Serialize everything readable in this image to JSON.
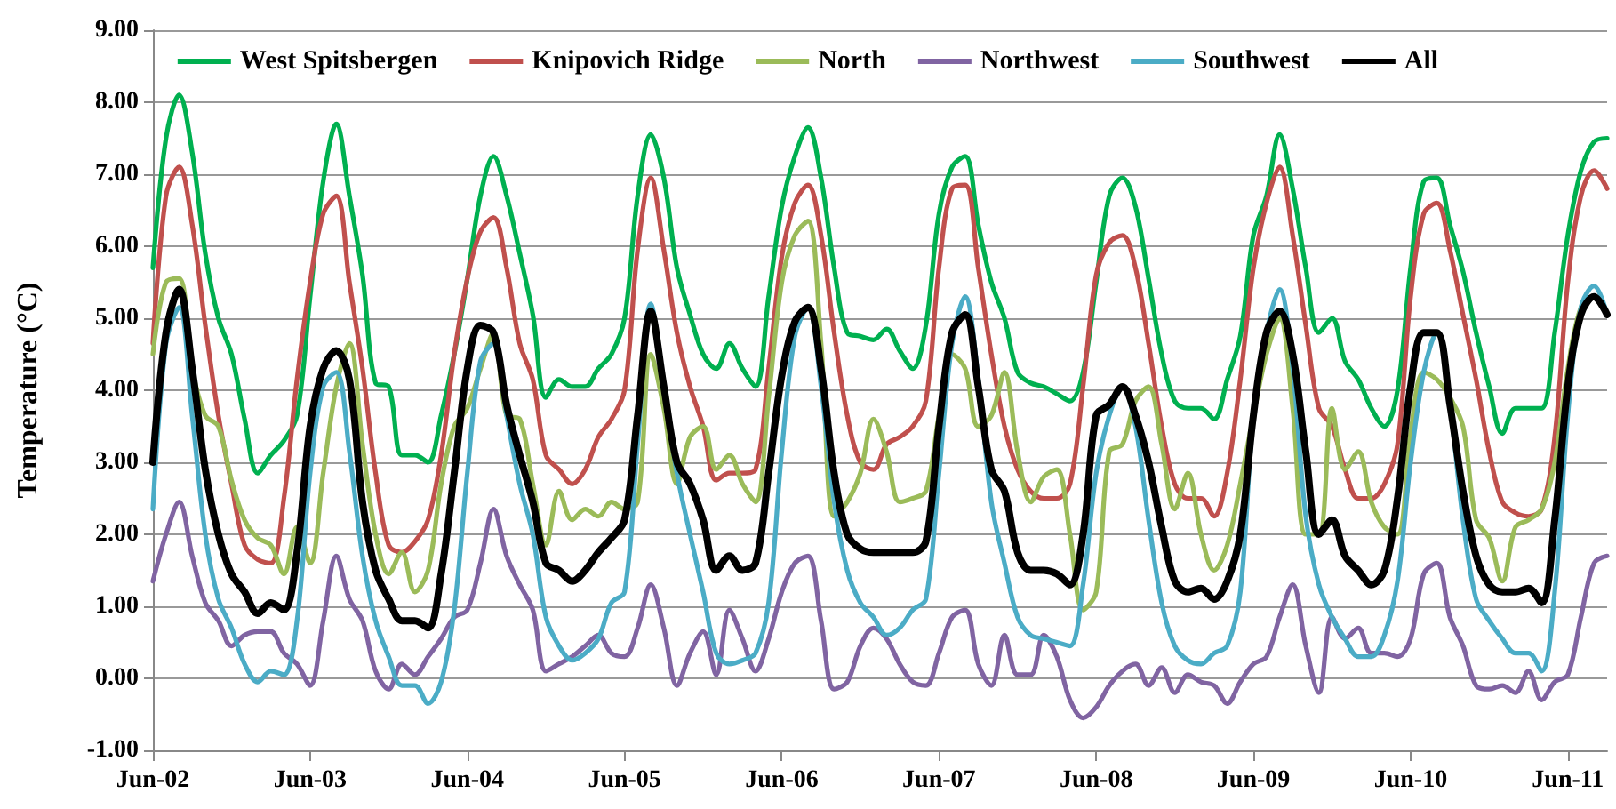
{
  "chart_data": {
    "type": "line",
    "ylabel": "Temperature (°C)",
    "categories": [
      "Jun-02",
      null,
      null,
      null,
      null,
      null,
      null,
      null,
      null,
      null,
      null,
      null,
      "Jun-03",
      null,
      null,
      null,
      null,
      null,
      null,
      null,
      null,
      null,
      null,
      null,
      "Jun-04",
      null,
      null,
      null,
      null,
      null,
      null,
      null,
      null,
      null,
      null,
      null,
      "Jun-05",
      null,
      null,
      null,
      null,
      null,
      null,
      null,
      null,
      null,
      null,
      null,
      "Jun-06",
      null,
      null,
      null,
      null,
      null,
      null,
      null,
      null,
      null,
      null,
      null,
      "Jun-07",
      null,
      null,
      null,
      null,
      null,
      null,
      null,
      null,
      null,
      null,
      null,
      "Jun-08",
      null,
      null,
      null,
      null,
      null,
      null,
      null,
      null,
      null,
      null,
      null,
      "Jun-09",
      null,
      null,
      null,
      null,
      null,
      null,
      null,
      null,
      null,
      null,
      null,
      "Jun-10",
      null,
      null,
      null,
      null,
      null,
      null,
      null,
      null,
      null,
      null,
      null,
      "Jun-11",
      null,
      null,
      null
    ],
    "series": [
      {
        "name": "West Spitsbergen",
        "color": "#00b050",
        "values": [
          5.7,
          7.5,
          8.1,
          7.3,
          5.9,
          5.0,
          4.5,
          3.6,
          2.85,
          3.1,
          3.3,
          3.65,
          5.3,
          6.9,
          7.7,
          6.7,
          5.6,
          4.1,
          4.05,
          3.1,
          3.1,
          3.0,
          3.65,
          4.5,
          5.55,
          6.7,
          7.25,
          6.7,
          5.9,
          5.05,
          3.9,
          4.15,
          4.05,
          4.05,
          4.3,
          4.5,
          5.0,
          6.7,
          7.55,
          6.95,
          5.7,
          5.05,
          4.5,
          4.3,
          4.65,
          4.3,
          4.05,
          5.3,
          6.55,
          7.25,
          7.65,
          6.95,
          5.7,
          4.8,
          4.75,
          4.7,
          4.85,
          4.55,
          4.3,
          4.9,
          6.45,
          7.1,
          7.25,
          6.3,
          5.5,
          5.0,
          4.25,
          4.1,
          4.05,
          3.95,
          3.85,
          4.25,
          5.5,
          6.7,
          6.95,
          6.55,
          5.55,
          4.5,
          3.85,
          3.75,
          3.75,
          3.6,
          4.15,
          4.75,
          6.15,
          6.7,
          7.55,
          6.8,
          5.7,
          4.8,
          5.0,
          4.4,
          4.15,
          3.75,
          3.5,
          4.0,
          5.7,
          6.9,
          6.95,
          6.3,
          5.65,
          4.8,
          4.05,
          3.4,
          3.75,
          3.75,
          3.75,
          4.8,
          6.15,
          7.05,
          7.45,
          7.5
        ]
      },
      {
        "name": "Knipovich Ridge",
        "color": "#c0504d",
        "values": [
          4.65,
          6.7,
          7.1,
          6.3,
          4.9,
          3.65,
          2.7,
          1.85,
          1.65,
          1.6,
          2.5,
          4.15,
          5.5,
          6.45,
          6.7,
          5.5,
          4.3,
          2.85,
          1.85,
          1.75,
          1.9,
          2.2,
          3.1,
          4.5,
          5.55,
          6.2,
          6.4,
          5.7,
          4.65,
          4.15,
          3.1,
          2.9,
          2.7,
          2.9,
          3.35,
          3.6,
          4.0,
          5.95,
          6.95,
          5.95,
          4.8,
          4.05,
          3.5,
          2.75,
          2.85,
          2.85,
          2.9,
          4.3,
          5.85,
          6.6,
          6.85,
          6.15,
          4.8,
          3.65,
          3.0,
          2.9,
          3.25,
          3.35,
          3.5,
          3.85,
          5.7,
          6.8,
          6.85,
          5.7,
          4.5,
          3.5,
          2.9,
          2.6,
          2.5,
          2.5,
          2.7,
          4.05,
          5.6,
          6.05,
          6.15,
          5.7,
          4.65,
          3.5,
          2.7,
          2.5,
          2.5,
          2.25,
          2.85,
          4.15,
          5.7,
          6.6,
          7.1,
          6.15,
          4.9,
          3.75,
          3.5,
          2.9,
          2.5,
          2.5,
          2.7,
          3.25,
          5.3,
          6.45,
          6.6,
          5.95,
          5.05,
          4.15,
          3.15,
          2.45,
          2.3,
          2.25,
          2.35,
          3.35,
          5.5,
          6.7,
          7.05,
          6.8
        ]
      },
      {
        "name": "North",
        "color": "#9bbb59",
        "values": [
          4.5,
          5.5,
          5.55,
          4.3,
          3.65,
          3.5,
          2.75,
          2.2,
          1.95,
          1.85,
          1.45,
          2.1,
          1.6,
          2.85,
          4.05,
          4.65,
          3.25,
          2.0,
          1.45,
          1.75,
          1.2,
          1.5,
          2.7,
          3.5,
          3.75,
          4.3,
          4.8,
          3.65,
          3.6,
          2.7,
          1.85,
          2.6,
          2.2,
          2.35,
          2.25,
          2.45,
          2.35,
          2.45,
          4.5,
          3.75,
          2.7,
          3.35,
          3.5,
          2.9,
          3.1,
          2.7,
          2.45,
          3.9,
          5.5,
          6.15,
          6.35,
          4.65,
          2.25,
          2.45,
          2.85,
          3.6,
          3.15,
          2.45,
          2.5,
          2.6,
          3.65,
          4.5,
          4.3,
          3.5,
          3.65,
          4.25,
          3.15,
          2.45,
          2.8,
          2.9,
          2.0,
          0.95,
          1.2,
          3.15,
          3.25,
          3.85,
          4.05,
          3.25,
          2.35,
          2.85,
          2.0,
          1.5,
          1.85,
          2.7,
          3.65,
          4.5,
          5.0,
          3.75,
          2.0,
          2.0,
          3.75,
          2.9,
          3.15,
          2.45,
          2.1,
          2.0,
          3.4,
          4.25,
          4.15,
          3.9,
          3.5,
          2.2,
          1.95,
          1.35,
          2.1,
          2.2,
          2.35,
          3.0,
          4.3,
          5.15,
          5.3,
          5.05
        ]
      },
      {
        "name": "Northwest",
        "color": "#8064a2",
        "values": [
          1.35,
          2.0,
          2.45,
          1.7,
          1.05,
          0.8,
          0.45,
          0.6,
          0.65,
          0.65,
          0.35,
          0.2,
          -0.1,
          0.8,
          1.7,
          1.1,
          0.8,
          0.1,
          -0.15,
          0.2,
          0.05,
          0.3,
          0.55,
          0.85,
          0.95,
          1.6,
          2.35,
          1.7,
          1.3,
          0.95,
          0.1,
          0.2,
          0.3,
          0.45,
          0.6,
          0.35,
          0.3,
          0.7,
          1.3,
          0.7,
          -0.1,
          0.35,
          0.65,
          0.05,
          0.95,
          0.55,
          0.1,
          0.55,
          1.2,
          1.6,
          1.7,
          0.8,
          -0.15,
          -0.05,
          0.45,
          0.7,
          0.55,
          0.2,
          -0.05,
          -0.1,
          0.35,
          0.85,
          0.95,
          0.2,
          -0.1,
          0.6,
          0.05,
          0.05,
          0.6,
          0.3,
          -0.3,
          -0.55,
          -0.4,
          -0.1,
          0.1,
          0.2,
          -0.1,
          0.15,
          -0.2,
          0.05,
          -0.05,
          -0.1,
          -0.35,
          -0.05,
          0.2,
          0.3,
          0.85,
          1.3,
          0.45,
          -0.2,
          0.85,
          0.55,
          0.7,
          0.35,
          0.35,
          0.3,
          0.55,
          1.45,
          1.6,
          0.85,
          0.45,
          -0.1,
          -0.15,
          -0.1,
          -0.2,
          0.1,
          -0.3,
          -0.05,
          0.05,
          0.85,
          1.6,
          1.7
        ]
      },
      {
        "name": "Southwest",
        "color": "#4bacc6",
        "values": [
          2.35,
          4.65,
          5.15,
          3.65,
          2.0,
          1.1,
          0.7,
          0.2,
          -0.05,
          0.1,
          0.05,
          0.8,
          2.85,
          4.05,
          4.25,
          3.15,
          1.7,
          0.8,
          0.3,
          -0.1,
          -0.1,
          -0.35,
          -0.05,
          0.95,
          2.85,
          4.4,
          4.65,
          3.65,
          2.7,
          2.0,
          0.85,
          0.45,
          0.25,
          0.35,
          0.55,
          1.05,
          1.2,
          3.25,
          5.2,
          4.05,
          2.85,
          2.0,
          1.2,
          0.35,
          0.2,
          0.25,
          0.35,
          1.05,
          3.15,
          4.75,
          5.15,
          4.05,
          2.45,
          1.5,
          1.05,
          0.85,
          0.6,
          0.7,
          0.95,
          1.1,
          2.85,
          4.65,
          5.3,
          4.15,
          2.45,
          1.6,
          0.85,
          0.6,
          0.55,
          0.5,
          0.45,
          1.3,
          2.85,
          3.65,
          4.05,
          3.5,
          2.2,
          1.05,
          0.45,
          0.25,
          0.2,
          0.35,
          0.45,
          1.2,
          3.65,
          4.8,
          5.4,
          4.3,
          2.25,
          1.3,
          0.85,
          0.55,
          0.3,
          0.3,
          0.6,
          1.35,
          3.0,
          4.25,
          4.8,
          3.8,
          2.2,
          1.1,
          0.8,
          0.55,
          0.35,
          0.35,
          0.1,
          1.2,
          3.65,
          5.15,
          5.45,
          5.05
        ]
      },
      {
        "name": "All",
        "color": "#000000",
        "values": [
          3.0,
          4.8,
          5.4,
          4.3,
          2.9,
          2.0,
          1.45,
          1.2,
          0.9,
          1.05,
          0.95,
          1.75,
          3.5,
          4.3,
          4.55,
          4.15,
          2.45,
          1.5,
          1.1,
          0.8,
          0.8,
          0.7,
          1.45,
          2.85,
          4.3,
          4.9,
          4.8,
          3.8,
          3.1,
          2.45,
          1.6,
          1.5,
          1.35,
          1.5,
          1.75,
          1.95,
          2.2,
          3.65,
          5.1,
          4.05,
          3.0,
          2.7,
          2.2,
          1.5,
          1.7,
          1.5,
          1.6,
          2.85,
          4.2,
          4.95,
          5.15,
          4.3,
          2.85,
          2.0,
          1.8,
          1.75,
          1.75,
          1.75,
          1.75,
          1.9,
          3.5,
          4.8,
          5.05,
          4.05,
          2.9,
          2.6,
          1.75,
          1.5,
          1.5,
          1.45,
          1.3,
          2.0,
          3.65,
          3.8,
          4.05,
          3.65,
          3.0,
          2.1,
          1.35,
          1.2,
          1.25,
          1.1,
          1.35,
          2.0,
          3.65,
          4.8,
          5.1,
          4.5,
          3.15,
          2.0,
          2.2,
          1.7,
          1.5,
          1.3,
          1.5,
          2.5,
          4.05,
          4.8,
          4.8,
          3.8,
          2.6,
          1.7,
          1.3,
          1.2,
          1.2,
          1.25,
          1.05,
          2.2,
          4.05,
          5.05,
          5.3,
          5.05
        ]
      }
    ],
    "ylim": [
      -1,
      9
    ],
    "yticks": [
      {
        "value": -1,
        "label": "-1.00"
      },
      {
        "value": 0,
        "label": "0.00"
      },
      {
        "value": 1,
        "label": "1.00"
      },
      {
        "value": 2,
        "label": "2.00"
      },
      {
        "value": 3,
        "label": "3.00"
      },
      {
        "value": 4,
        "label": "4.00"
      },
      {
        "value": 5,
        "label": "5.00"
      },
      {
        "value": 6,
        "label": "6.00"
      },
      {
        "value": 7,
        "label": "7.00"
      },
      {
        "value": 8,
        "label": "8.00"
      },
      {
        "value": 9,
        "label": "9.00"
      }
    ],
    "grid": "y",
    "legend": "top",
    "marker": "none",
    "line_style": "solid"
  }
}
